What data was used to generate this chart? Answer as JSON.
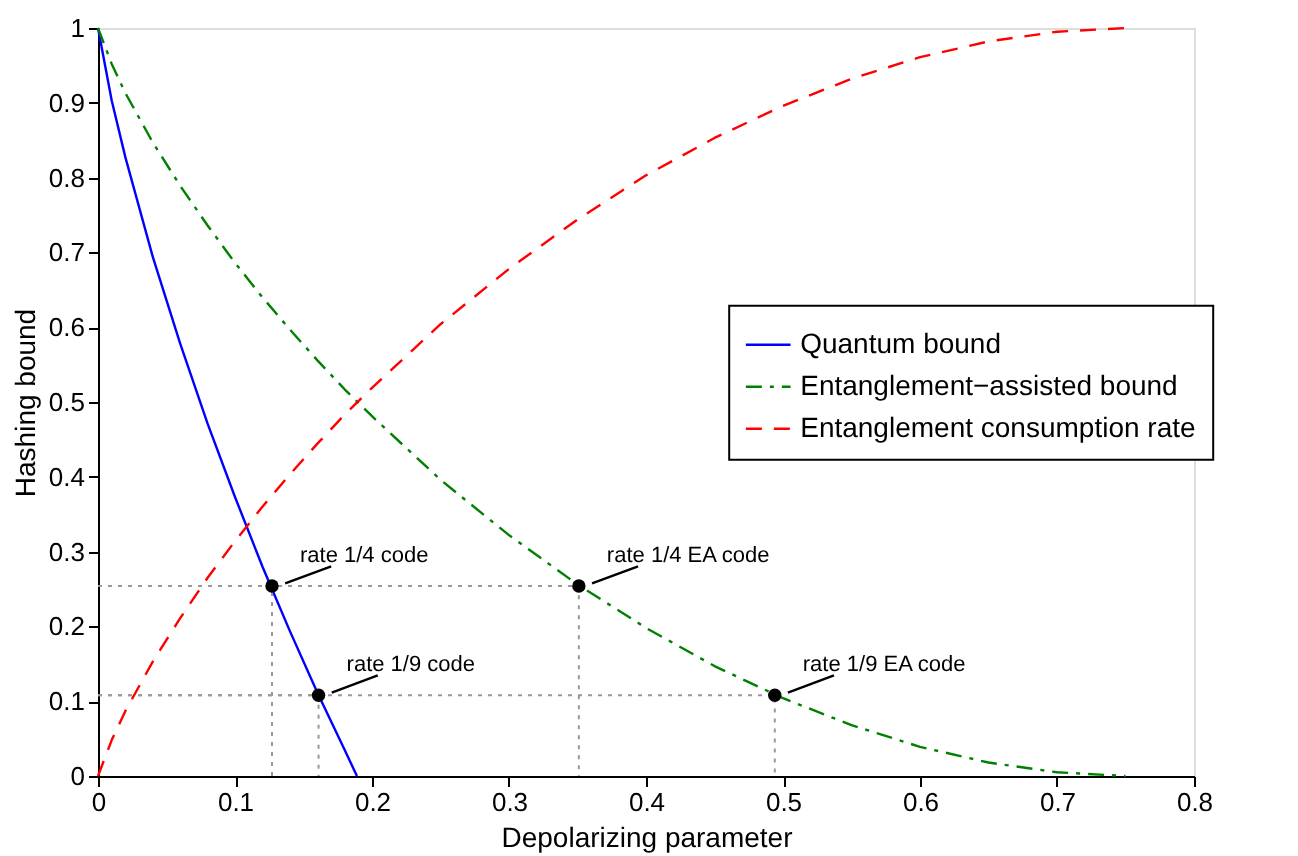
{
  "chart_data": {
    "type": "line",
    "xlabel": "Depolarizing parameter",
    "ylabel": "Hashing bound",
    "xlim": [
      0,
      0.8
    ],
    "ylim": [
      0,
      1
    ],
    "xticks": [
      0,
      0.1,
      0.2,
      0.3,
      0.4,
      0.5,
      0.6,
      0.7,
      0.8
    ],
    "yticks": [
      0,
      0.1,
      0.2,
      0.3,
      0.4,
      0.5,
      0.6,
      0.7,
      0.8,
      0.9,
      1
    ],
    "grid": false,
    "legend": "right",
    "series": [
      {
        "name": "Quantum bound",
        "color": "#0000ff",
        "line_style": "solid",
        "x": [
          0,
          0.01,
          0.02,
          0.04,
          0.06,
          0.08,
          0.1,
          0.12,
          0.14,
          0.16,
          0.18,
          0.189
        ],
        "values": [
          1,
          0.903,
          0.827,
          0.694,
          0.578,
          0.471,
          0.373,
          0.28,
          0.194,
          0.112,
          0.035,
          0
        ]
      },
      {
        "name": "Entanglement−assisted bound",
        "color": "#008000",
        "line_style": "dashdot",
        "x": [
          0,
          0.01,
          0.02,
          0.04,
          0.06,
          0.08,
          0.1,
          0.12,
          0.14,
          0.16,
          0.18,
          0.2,
          0.25,
          0.3,
          0.35,
          0.4,
          0.45,
          0.5,
          0.55,
          0.6,
          0.65,
          0.7,
          0.75
        ],
        "values": [
          1,
          0.952,
          0.913,
          0.847,
          0.789,
          0.736,
          0.686,
          0.64,
          0.597,
          0.556,
          0.517,
          0.481,
          0.396,
          0.322,
          0.256,
          0.198,
          0.147,
          0.104,
          0.068,
          0.039,
          0.018,
          0.005,
          0
        ]
      },
      {
        "name": "Entanglement consumption rate",
        "color": "#ff0000",
        "line_style": "dashed",
        "x": [
          0,
          0.01,
          0.02,
          0.04,
          0.06,
          0.08,
          0.1,
          0.12,
          0.14,
          0.16,
          0.18,
          0.2,
          0.25,
          0.3,
          0.35,
          0.4,
          0.45,
          0.5,
          0.55,
          0.6,
          0.65,
          0.7,
          0.75
        ],
        "values": [
          0,
          0.048,
          0.087,
          0.153,
          0.211,
          0.265,
          0.314,
          0.36,
          0.403,
          0.444,
          0.483,
          0.519,
          0.604,
          0.678,
          0.744,
          0.803,
          0.853,
          0.896,
          0.932,
          0.961,
          0.982,
          0.995,
          1
        ]
      },
      {
        "color": "#999999",
        "line_style": "dotted",
        "x": [
          0,
          0.127,
          0.127
        ],
        "values": [
          0.254,
          0.254,
          0
        ]
      },
      {
        "color": "#999999",
        "line_style": "dotted",
        "x": [
          0,
          0.161,
          0.161
        ],
        "values": [
          0.108,
          0.108,
          0
        ]
      },
      {
        "color": "#999999",
        "line_style": "dotted",
        "x": [
          0,
          0.351,
          0.351
        ],
        "values": [
          0.254,
          0.254,
          0
        ]
      },
      {
        "color": "#999999",
        "line_style": "dotted",
        "x": [
          0,
          0.494,
          0.494
        ],
        "values": [
          0.108,
          0.108,
          0
        ]
      },
      {
        "type": "scatter",
        "color": "#000000",
        "marker": "circle",
        "x": [
          0.127,
          0.161,
          0.351,
          0.494
        ],
        "values": [
          0.254,
          0.108,
          0.254,
          0.108
        ]
      }
    ],
    "annotations": [
      {
        "text": "rate 1/4 code",
        "x": 0.127,
        "y": 0.254
      },
      {
        "text": "rate 1/9 code",
        "x": 0.161,
        "y": 0.108
      },
      {
        "text": "rate 1/4 EA code",
        "x": 0.351,
        "y": 0.254
      },
      {
        "text": "rate 1/9 EA code",
        "x": 0.494,
        "y": 0.108
      }
    ]
  }
}
